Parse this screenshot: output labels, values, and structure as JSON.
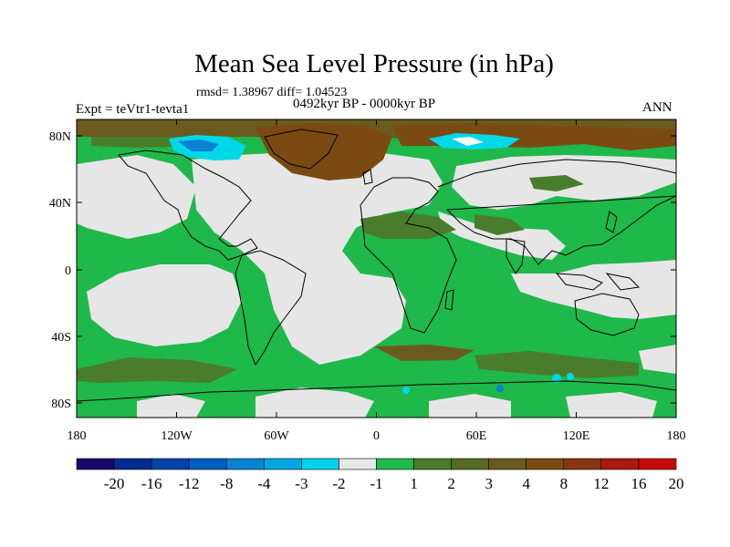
{
  "title": "Mean Sea Level Pressure (in hPa)",
  "stats": "rmsd= 1.38967 diff= 1.04523",
  "period": "0492kyr BP - 0000kyr BP",
  "experiment": "Expt = teVtr1-tevta1",
  "season": "ANN",
  "colors": {
    "land_neutral": "#e6e6e6",
    "green": "#1fb84a",
    "dark_green": "#4a7d2b",
    "olive": "#6b5a1e",
    "brown": "#7a4a12",
    "cyan": "#00d8e8",
    "coast": "#000000"
  },
  "map": {
    "lat_ticks": [
      "80N",
      "40N",
      "0",
      "40S",
      "80S"
    ],
    "lon_ticks": [
      "180",
      "120W",
      "60W",
      "0",
      "60E",
      "120E",
      "180"
    ]
  },
  "colorbar": {
    "colors": [
      "#1a0a6e",
      "#002c8f",
      "#0044a8",
      "#005fc0",
      "#0a82d2",
      "#00a6e0",
      "#00d2ec",
      "#e6e6e6",
      "#1fb84a",
      "#4a7d2b",
      "#556b22",
      "#6b5a1e",
      "#7a4a12",
      "#8a3412",
      "#a81a10",
      "#c80a08"
    ],
    "labels": [
      "-20",
      "-16",
      "-12",
      "-8",
      "-4",
      "-3",
      "-2",
      "-1",
      "1",
      "2",
      "3",
      "4",
      "8",
      "12",
      "16",
      "20"
    ]
  }
}
